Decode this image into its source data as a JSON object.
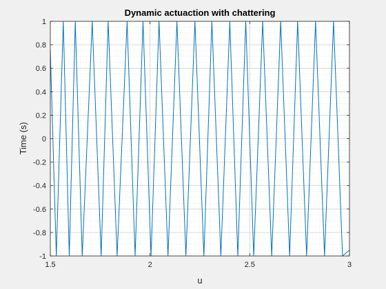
{
  "chart_data": {
    "type": "line",
    "title": "Dynamic actuaction with chattering",
    "xlabel": "u",
    "ylabel": "Time (s)",
    "xlim": [
      1.5,
      3
    ],
    "ylim": [
      -1,
      1
    ],
    "xticks": [
      1.5,
      2,
      2.5,
      3
    ],
    "xtick_labels": [
      "1.5",
      "2",
      "2.5",
      "3"
    ],
    "yticks": [
      -1,
      -0.8,
      -0.6,
      -0.4,
      -0.2,
      0,
      0.2,
      0.4,
      0.6,
      0.8,
      1
    ],
    "ytick_labels": [
      "-1",
      "-0.8",
      "-0.6",
      "-0.4",
      "-0.2",
      "0",
      "0.2",
      "0.4",
      "0.6",
      "0.8",
      "1"
    ],
    "grid": true,
    "minor_grid": true,
    "colors": {
      "series": "#0072bd",
      "axes_bg": "#ffffff",
      "figure_bg": "#f0f0f0"
    },
    "series": [
      {
        "x": [
          1.5,
          1.53,
          1.565,
          1.595,
          1.625,
          1.66,
          1.71,
          1.755,
          1.79,
          1.835,
          1.885,
          1.925,
          1.965,
          2.005,
          2.045,
          2.09,
          2.135,
          2.18,
          2.225,
          2.27,
          2.31,
          2.355,
          2.4,
          2.44,
          2.48,
          2.52,
          2.565,
          2.61,
          2.655,
          2.7,
          2.74,
          2.785,
          2.83,
          2.875,
          2.92,
          2.965,
          3.0
        ],
        "y": [
          0.75,
          -1,
          1,
          -1,
          1,
          -1,
          1,
          -1,
          1,
          -1,
          1,
          -1,
          1,
          -1,
          1,
          -1,
          1,
          -1,
          1,
          -1,
          1,
          -1,
          1,
          -1,
          1,
          -1,
          1,
          -1,
          1,
          -1,
          1,
          -1,
          1,
          -1,
          1,
          -1,
          -0.95
        ]
      }
    ]
  }
}
